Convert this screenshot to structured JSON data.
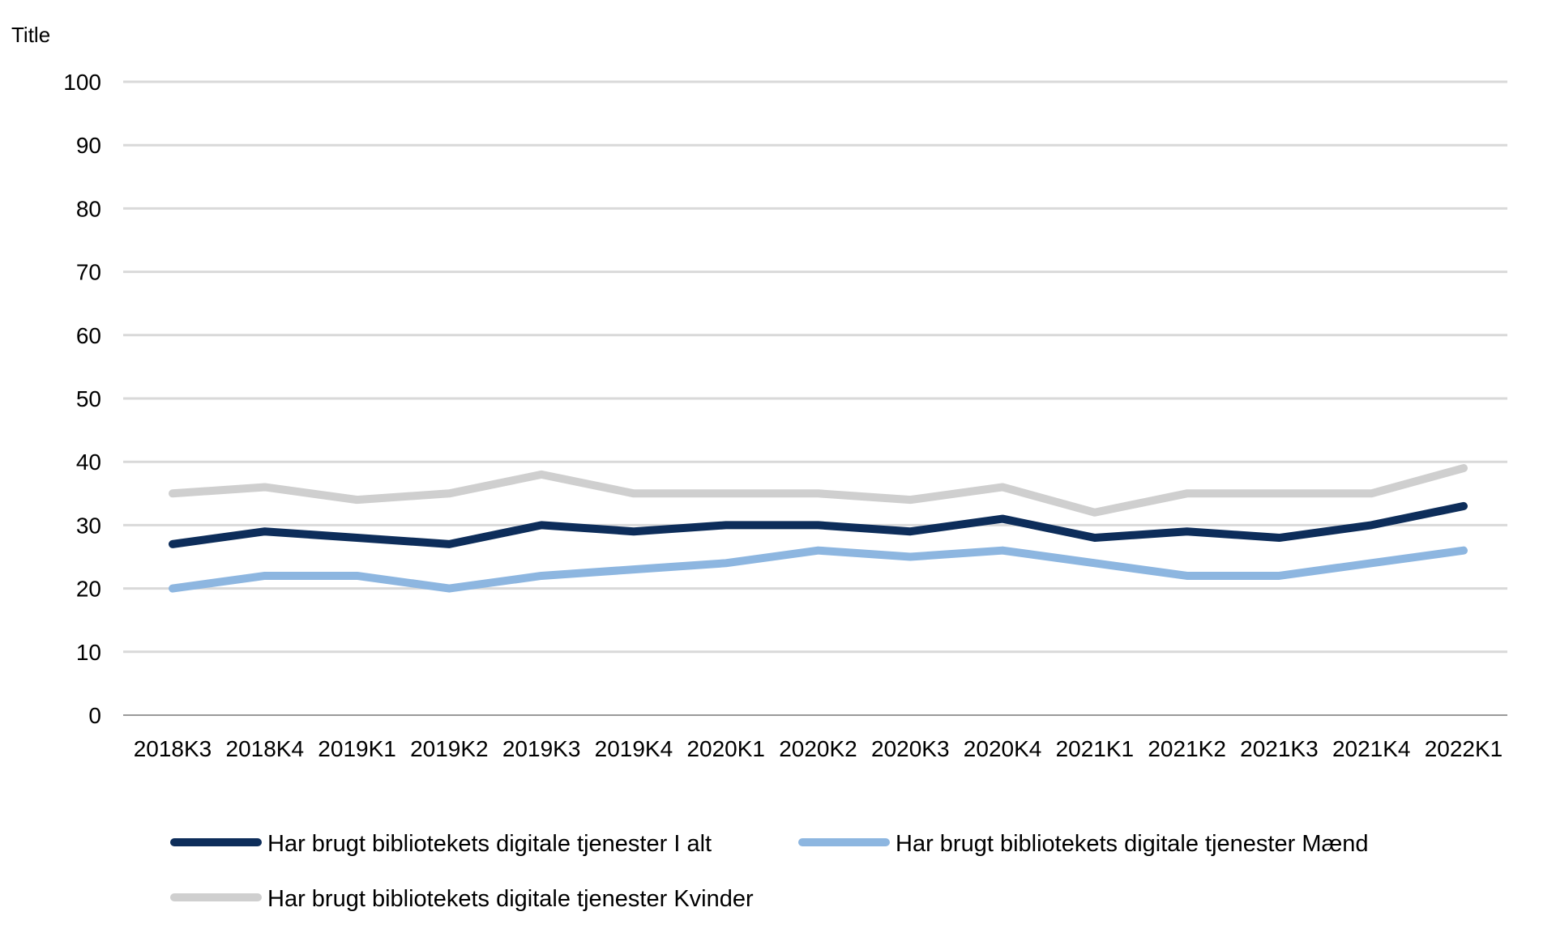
{
  "chart_data": {
    "type": "line",
    "title": "",
    "ylabel": "Title",
    "xlabel": "",
    "ylim": [
      0,
      100
    ],
    "yticks": [
      0,
      10,
      20,
      30,
      40,
      50,
      60,
      70,
      80,
      90,
      100
    ],
    "grid": true,
    "legend_position": "bottom",
    "categories": [
      "2018K3",
      "2018K4",
      "2019K1",
      "2019K2",
      "2019K3",
      "2019K4",
      "2020K1",
      "2020K2",
      "2020K3",
      "2020K4",
      "2021K1",
      "2021K2",
      "2021K3",
      "2021K4",
      "2022K1"
    ],
    "series": [
      {
        "name": "Har brugt bibliotekets digitale tjenester I alt",
        "color": "#0d2d5a",
        "values": [
          27,
          29,
          28,
          27,
          30,
          29,
          30,
          30,
          29,
          31,
          28,
          29,
          28,
          30,
          33
        ]
      },
      {
        "name": "Har brugt bibliotekets digitale tjenester Mænd",
        "color": "#8db6e0",
        "values": [
          20,
          22,
          22,
          20,
          22,
          23,
          24,
          26,
          25,
          26,
          24,
          22,
          22,
          24,
          26
        ]
      },
      {
        "name": "Har brugt bibliotekets digitale tjenester Kvinder",
        "color": "#cfcfcf",
        "values": [
          35,
          36,
          34,
          35,
          38,
          35,
          35,
          35,
          34,
          36,
          32,
          35,
          35,
          35,
          39
        ]
      }
    ]
  }
}
